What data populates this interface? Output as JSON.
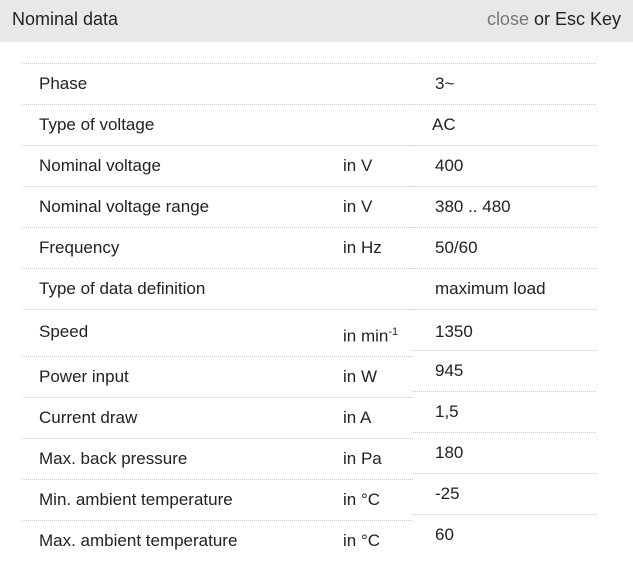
{
  "header": {
    "title": "Nominal data",
    "close_link": "close",
    "close_suffix": " or Esc Key"
  },
  "rows": [
    {
      "label": "Phase",
      "unit": "",
      "value": "3~"
    },
    {
      "label": "Type of voltage",
      "unit": "",
      "value": "AC"
    },
    {
      "label": "Nominal voltage",
      "unit": "in V",
      "value": "400"
    },
    {
      "label": "Nominal voltage range",
      "unit": "in V",
      "value": "380 .. 480"
    },
    {
      "label": "Frequency",
      "unit": "in Hz",
      "value": "50/60"
    },
    {
      "label": "Type of data definition",
      "unit": "",
      "value": "maximum load"
    },
    {
      "label": "Speed",
      "unit": "in min",
      "unit_sup": "-1",
      "value": "1350"
    },
    {
      "label": "Power input",
      "unit": "in W",
      "value": "945"
    },
    {
      "label": "Current draw",
      "unit": "in A",
      "value": "1,5"
    },
    {
      "label": "Max. back pressure",
      "unit": "in Pa",
      "value": "180"
    },
    {
      "label": "Min. ambient temperature",
      "unit": "in °C",
      "value": "-25"
    },
    {
      "label": "Max. ambient temperature",
      "unit": "in °C",
      "value": "60"
    }
  ]
}
